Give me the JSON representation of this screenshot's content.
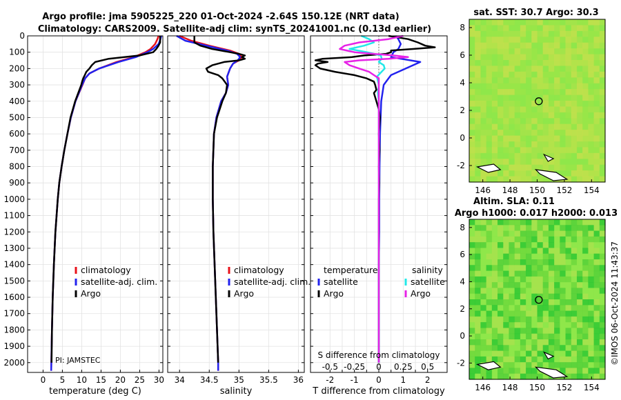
{
  "header": {
    "title_line1": "Argo profile: jma 5905225_220 01-Oct-2024 -2.64S 150.12E (NRT data)",
    "title_line2": "Climatology: CARS2009. Satellite-adj clim: synTS_20241001.nc (0.13d earlier)"
  },
  "colors": {
    "climatology": "#e8111a",
    "satellite": "#2222ee",
    "argo": "#000000",
    "sal_satellite": "#22e8e8",
    "sal_argo": "#e622e6",
    "map_base": "#8fe64a",
    "map_warm": "#b8e24a",
    "map_dark": "#2fc832"
  },
  "pi_label": "PI: JAMSTEC",
  "watermark": "©IMOS 06-Oct-2024 11:43:37",
  "chart_data": [
    {
      "id": "temperature",
      "type": "line",
      "xlabel": "temperature (deg C)",
      "ylabel": "",
      "xlim": [
        -4,
        31
      ],
      "ylim": [
        2060,
        0
      ],
      "xticks": [
        0,
        5,
        10,
        15,
        20,
        25,
        30
      ],
      "yticks": [
        0,
        100,
        200,
        300,
        400,
        500,
        600,
        700,
        800,
        900,
        1000,
        1100,
        1200,
        1300,
        1400,
        1500,
        1600,
        1700,
        1800,
        1900,
        2000
      ],
      "legend": [
        "climatology",
        "satellite-adj. clim.",
        "Argo"
      ],
      "legend_position": "right",
      "series": [
        {
          "name": "climatology",
          "color_key": "climatology",
          "depth": [
            0,
            20,
            50,
            80,
            100,
            130,
            160,
            200,
            230,
            260,
            300,
            400,
            500,
            600,
            700,
            800,
            900,
            1000,
            1200,
            1400,
            1600,
            1800,
            2000,
            2050
          ],
          "values": [
            29.9,
            29.6,
            29.0,
            27.8,
            26.5,
            23.5,
            19.0,
            14.5,
            12.0,
            10.9,
            10.2,
            8.4,
            7.2,
            6.3,
            5.5,
            4.8,
            4.2,
            3.8,
            3.2,
            2.8,
            2.5,
            2.3,
            2.15,
            2.1
          ]
        },
        {
          "name": "satellite-adj. clim.",
          "color_key": "satellite",
          "depth": [
            0,
            20,
            50,
            80,
            100,
            130,
            160,
            200,
            230,
            260,
            300,
            400,
            500,
            600,
            700,
            800,
            900,
            1000,
            1200,
            1400,
            1600,
            1800,
            2000,
            2050
          ],
          "values": [
            30.6,
            30.4,
            29.9,
            28.5,
            27.0,
            24.0,
            19.5,
            14.5,
            12.0,
            10.9,
            10.1,
            8.4,
            7.2,
            6.3,
            5.5,
            4.8,
            4.2,
            3.8,
            3.2,
            2.8,
            2.5,
            2.3,
            2.15,
            2.1
          ]
        },
        {
          "name": "Argo",
          "color_key": "argo",
          "depth": [
            0,
            20,
            40,
            60,
            80,
            100,
            120,
            140,
            160,
            180,
            200,
            220,
            240,
            260,
            280,
            300,
            400,
            500,
            600,
            700,
            800,
            900,
            1000,
            1200,
            1400,
            1600,
            1800,
            2000
          ],
          "values": [
            30.3,
            30.3,
            30.3,
            29.9,
            29.3,
            28.5,
            25.0,
            17.0,
            13.5,
            12.6,
            12.0,
            11.2,
            10.8,
            10.4,
            10.1,
            9.9,
            8.3,
            7.1,
            6.3,
            5.5,
            4.8,
            4.2,
            3.8,
            3.2,
            2.8,
            2.5,
            2.3,
            2.2
          ]
        }
      ]
    },
    {
      "id": "salinity",
      "type": "line",
      "xlabel": "salinity",
      "xlim": [
        33.8,
        36.1
      ],
      "ylim": [
        2060,
        0
      ],
      "xticks": [
        34,
        34.5,
        35,
        35.5,
        36
      ],
      "legend": [
        "climatology",
        "satellite-adj. clim.",
        "Argo"
      ],
      "legend_position": "right",
      "series": [
        {
          "name": "climatology",
          "color_key": "climatology",
          "depth": [
            0,
            30,
            60,
            90,
            110,
            130,
            150,
            170,
            200,
            250,
            300,
            350,
            400,
            500,
            600,
            800,
            1000,
            1200,
            1500,
            1800,
            2000,
            2050
          ],
          "values": [
            34.0,
            34.2,
            34.5,
            34.85,
            35.0,
            35.05,
            35.0,
            34.9,
            34.85,
            34.8,
            34.82,
            34.78,
            34.7,
            34.62,
            34.58,
            34.56,
            34.56,
            34.57,
            34.6,
            34.63,
            34.65,
            34.65
          ]
        },
        {
          "name": "satellite-adj. clim.",
          "color_key": "satellite",
          "depth": [
            0,
            30,
            60,
            90,
            110,
            130,
            150,
            170,
            200,
            250,
            300,
            350,
            400,
            500,
            600,
            800,
            1000,
            1200,
            1500,
            1800,
            2000,
            2050
          ],
          "values": [
            33.95,
            34.1,
            34.45,
            34.8,
            34.97,
            35.02,
            34.98,
            34.9,
            34.85,
            34.8,
            34.82,
            34.78,
            34.7,
            34.62,
            34.58,
            34.56,
            34.56,
            34.57,
            34.6,
            34.63,
            34.65,
            34.65
          ]
        },
        {
          "name": "Argo",
          "color_key": "argo",
          "depth": [
            0,
            20,
            40,
            60,
            80,
            100,
            110,
            120,
            130,
            140,
            150,
            160,
            180,
            200,
            220,
            240,
            260,
            300,
            350,
            400,
            500,
            600,
            800,
            1000,
            1200,
            1500,
            1800,
            2000
          ],
          "values": [
            34.25,
            34.25,
            34.25,
            34.35,
            34.55,
            34.85,
            35.0,
            35.1,
            35.05,
            35.1,
            35.0,
            34.75,
            34.55,
            34.45,
            34.48,
            34.65,
            34.72,
            34.8,
            34.78,
            34.72,
            34.63,
            34.58,
            34.56,
            34.56,
            34.57,
            34.6,
            34.63,
            34.65
          ]
        }
      ]
    },
    {
      "id": "differences",
      "type": "line",
      "xlabel": "T difference from climatology",
      "top_label": "S difference from climatology",
      "xlim": [
        -2.8,
        2.8
      ],
      "ylim": [
        2060,
        0
      ],
      "xticks_T": [
        -2,
        -1.5,
        -1,
        -0.5,
        0,
        0.5,
        1,
        1.5,
        2
      ],
      "xtick_labels_T": [
        "-2",
        "",
        "-1",
        "",
        "0",
        "",
        "1",
        "",
        "2"
      ],
      "xticks_S": [
        -0.5,
        -0.25,
        0,
        0.25,
        0.5
      ],
      "xtick_labels_S": [
        "-0.5",
        "-0.25",
        "0",
        "0.25",
        "0.5"
      ],
      "s_scale": 4,
      "legend_T_title": "temperature",
      "legend_S_title": "salinity",
      "legend_entries": [
        "satellite",
        "Argo"
      ],
      "series": [
        {
          "name": "T satellite",
          "kind": "T",
          "color_key": "satellite",
          "depth": [
            0,
            20,
            50,
            80,
            100,
            130,
            160,
            200,
            240,
            260,
            300,
            400,
            600,
            800,
            1000,
            1200,
            1400,
            1600,
            1800,
            2000
          ],
          "values": [
            0.7,
            0.8,
            0.9,
            0.8,
            0.6,
            0.5,
            1.7,
            1.1,
            0.5,
            0.4,
            0.2,
            0.1,
            0.05,
            0.03,
            0.02,
            0.02,
            0.0,
            0.0,
            0.0,
            0.0
          ]
        },
        {
          "name": "T Argo",
          "kind": "T",
          "color_key": "argo",
          "depth": [
            0,
            20,
            40,
            60,
            70,
            80,
            90,
            100,
            110,
            120,
            130,
            140,
            150,
            160,
            170,
            180,
            200,
            220,
            240,
            260,
            280,
            300,
            330,
            350,
            400,
            450,
            500,
            600,
            700,
            800,
            900,
            1000,
            1200,
            1400,
            1600,
            1800,
            2000
          ],
          "values": [
            0.4,
            1.2,
            1.6,
            1.9,
            2.3,
            1.4,
            0.5,
            0.5,
            0.3,
            -0.6,
            -1.1,
            -2.3,
            -2.6,
            -2.1,
            -2.5,
            -2.6,
            -2.4,
            -1.8,
            -1.0,
            -0.5,
            -0.2,
            -0.15,
            -0.1,
            -0.2,
            -0.1,
            0.0,
            0.05,
            0.0,
            0.03,
            0.0,
            0.02,
            0.0,
            0.0,
            0.0,
            0.0,
            0.0,
            0.0
          ]
        },
        {
          "name": "S satellite",
          "kind": "S",
          "color_key": "sal_satellite",
          "depth": [
            0,
            20,
            40,
            60,
            80,
            100,
            120,
            140,
            160,
            180,
            200,
            250,
            300,
            350,
            400,
            500,
            700,
            1000,
            1500,
            2000
          ],
          "values": [
            -0.18,
            -0.1,
            -0.05,
            -0.15,
            -0.3,
            -0.12,
            0.02,
            0.03,
            0.0,
            0.05,
            0.06,
            -0.02,
            0.0,
            -0.01,
            0.0,
            0.0,
            0.0,
            0.0,
            0.0,
            0.0
          ]
        },
        {
          "name": "S Argo",
          "kind": "S",
          "color_key": "sal_argo",
          "depth": [
            0,
            20,
            40,
            60,
            80,
            100,
            110,
            120,
            130,
            140,
            150,
            160,
            180,
            200,
            220,
            240,
            260,
            300,
            400,
            500,
            700,
            1000,
            1500,
            2000
          ],
          "values": [
            0.25,
            0.1,
            -0.2,
            -0.35,
            -0.4,
            -0.25,
            -0.05,
            0.15,
            0.3,
            0.1,
            -0.2,
            -0.35,
            -0.3,
            -0.2,
            -0.1,
            -0.05,
            0.0,
            0.0,
            0.0,
            0.0,
            0.0,
            0.0,
            0.0,
            0.0
          ]
        }
      ]
    },
    {
      "id": "sst_map",
      "type": "heatmap",
      "title": "sat. SST: 30.7  Argo: 30.3",
      "xlim": [
        145,
        155
      ],
      "ylim": [
        -3.2,
        8.6
      ],
      "xticks": [
        146,
        148,
        150,
        152,
        154
      ],
      "yticks": [
        -2,
        0,
        2,
        4,
        6,
        8
      ],
      "marker": {
        "lon": 150.12,
        "lat": -2.64
      }
    },
    {
      "id": "sla_map",
      "type": "heatmap",
      "title_line1": "Altim. SLA: 0.11",
      "title_line2": "Argo h1000: 0.017 h2000: 0.013",
      "xlim": [
        145,
        155
      ],
      "ylim": [
        -3.2,
        8.6
      ],
      "xticks": [
        146,
        148,
        150,
        152,
        154
      ],
      "yticks": [
        -2,
        0,
        2,
        4,
        6,
        8
      ],
      "marker": {
        "lon": 150.12,
        "lat": -2.64
      }
    }
  ]
}
